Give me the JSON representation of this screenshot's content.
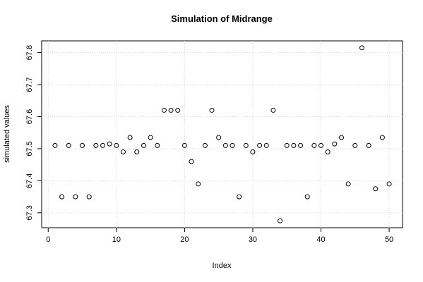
{
  "chart_data": {
    "type": "scatter",
    "title": "Simulation of Midrange",
    "x_label": "Index",
    "y_label": "simulated values",
    "x": [
      1,
      2,
      3,
      4,
      5,
      6,
      7,
      8,
      9,
      10,
      11,
      12,
      13,
      14,
      15,
      16,
      17,
      18,
      19,
      20,
      21,
      22,
      23,
      24,
      25,
      26,
      27,
      28,
      29,
      30,
      31,
      32,
      33,
      34,
      35,
      36,
      37,
      38,
      39,
      40,
      41,
      42,
      43,
      44,
      45,
      46,
      47,
      48,
      49,
      50
    ],
    "series": [
      {
        "color": "#000000",
        "values": [
          67.51,
          67.35,
          67.51,
          67.35,
          67.51,
          67.35,
          67.51,
          67.51,
          67.515,
          67.51,
          67.49,
          67.535,
          67.49,
          67.51,
          67.535,
          67.51,
          67.62,
          67.62,
          67.62,
          67.51,
          67.46,
          67.39,
          67.51,
          67.62,
          67.535,
          67.51,
          67.51,
          67.35,
          67.51,
          67.49,
          67.51,
          67.51,
          67.62,
          67.275,
          67.51,
          67.51,
          67.51,
          67.35,
          67.51,
          67.51,
          67.49,
          67.515,
          67.535,
          67.39,
          67.51,
          67.815,
          67.51,
          67.375,
          67.535,
          67.39
        ]
      }
    ],
    "xlim": [
      -0.96,
      51.96
    ],
    "ylim": [
      67.2534,
      67.8366
    ],
    "xticks": [
      0,
      10,
      20,
      30,
      40,
      50
    ],
    "yticks": [
      67.3,
      67.4,
      67.5,
      67.6,
      67.7,
      67.8
    ],
    "grid": true
  }
}
